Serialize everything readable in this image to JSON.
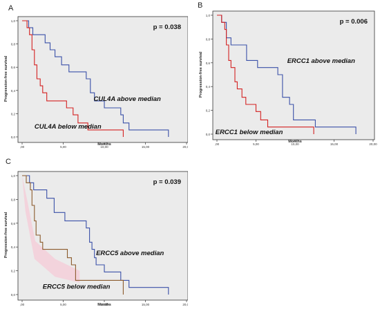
{
  "panels": [
    {
      "letter": "A",
      "chart_data": {
        "type": "line",
        "ylabel": "Progression-free survival",
        "xlabel": "Months",
        "xlim": [
          0,
          20
        ],
        "ylim": [
          0,
          1
        ],
        "xticks": [
          0,
          5,
          10,
          15,
          20
        ],
        "xtick_labels": [
          ",00",
          "5,00",
          "10,00",
          "15,00",
          "20,00"
        ],
        "yticks": [
          0,
          0.2,
          0.4,
          0.6,
          0.8,
          1.0
        ],
        "ytick_labels": [
          "0,0",
          "0,2",
          "0,4",
          "0,6",
          "0,8",
          "1,0"
        ],
        "pvalue": "p = 0.038",
        "background": "#ebebeb",
        "series": [
          {
            "name": "CUL4A above median",
            "color": "#3a50a8",
            "x": [
              0,
              0.8,
              0.8,
              1.3,
              1.3,
              2.8,
              2.8,
              3.4,
              3.4,
              4.0,
              4.0,
              4.8,
              4.8,
              5.7,
              5.7,
              7.8,
              7.8,
              8.3,
              8.3,
              8.8,
              8.8,
              10.0,
              10.0,
              12.0,
              12.0,
              12.3,
              12.3,
              13.0,
              13.0,
              17.8,
              17.8
            ],
            "y": [
              1.0,
              1.0,
              0.94,
              0.94,
              0.88,
              0.88,
              0.81,
              0.81,
              0.75,
              0.75,
              0.69,
              0.69,
              0.62,
              0.62,
              0.56,
              0.56,
              0.5,
              0.5,
              0.38,
              0.38,
              0.31,
              0.31,
              0.25,
              0.25,
              0.19,
              0.19,
              0.12,
              0.12,
              0.06,
              0.06,
              0.0
            ]
          },
          {
            "name": "CUL4A below median",
            "color": "#d42020",
            "x": [
              0,
              0.6,
              0.6,
              0.9,
              0.9,
              1.2,
              1.2,
              1.5,
              1.5,
              1.8,
              1.8,
              2.2,
              2.2,
              2.5,
              2.5,
              3.0,
              3.0,
              5.4,
              5.4,
              6.2,
              6.2,
              6.8,
              6.8,
              8.0,
              8.0,
              12.3,
              12.3
            ],
            "y": [
              1.0,
              1.0,
              0.94,
              0.94,
              0.88,
              0.88,
              0.75,
              0.75,
              0.62,
              0.62,
              0.5,
              0.5,
              0.44,
              0.44,
              0.38,
              0.38,
              0.31,
              0.31,
              0.25,
              0.25,
              0.19,
              0.19,
              0.12,
              0.12,
              0.06,
              0.06,
              0.0
            ]
          }
        ],
        "annotations": [
          {
            "text": "CUL4A above median",
            "x": 8.7,
            "y": 0.31
          },
          {
            "text": "CUL4A below median",
            "x": 1.5,
            "y": 0.07
          }
        ]
      }
    },
    {
      "letter": "B",
      "chart_data": {
        "type": "line",
        "ylabel": "Progression-free survival",
        "xlabel": "Months",
        "xlim": [
          0,
          20
        ],
        "ylim": [
          0,
          1
        ],
        "xticks": [
          0,
          5,
          10,
          15,
          20
        ],
        "xtick_labels": [
          ",00",
          "5,00",
          "10,00",
          "15,00",
          "20,00"
        ],
        "yticks": [
          0,
          0.2,
          0.4,
          0.6,
          0.8,
          1.0
        ],
        "ytick_labels": [
          "0,0",
          "0,2",
          "0,4",
          "0,6",
          "0,8",
          "1,0"
        ],
        "pvalue": "p = 0.006",
        "background": "#ebebeb",
        "series": [
          {
            "name": "ERCC1 above median",
            "color": "#3a50a8",
            "x": [
              0,
              0.6,
              0.6,
              1.2,
              1.2,
              1.8,
              1.8,
              3.8,
              3.8,
              5.2,
              5.2,
              7.8,
              7.8,
              8.4,
              8.4,
              9.3,
              9.3,
              9.8,
              9.8,
              12.6,
              12.6,
              13.2,
              13.2,
              17.8,
              17.8
            ],
            "y": [
              1.0,
              1.0,
              0.94,
              0.94,
              0.81,
              0.81,
              0.75,
              0.75,
              0.62,
              0.62,
              0.56,
              0.56,
              0.5,
              0.5,
              0.31,
              0.31,
              0.25,
              0.25,
              0.12,
              0.12,
              0.06,
              0.06,
              0.06,
              0.06,
              0.0
            ]
          },
          {
            "name": "ERCC1 below median",
            "color": "#d42020",
            "x": [
              0,
              0.6,
              0.6,
              1.0,
              1.0,
              1.2,
              1.2,
              1.5,
              1.5,
              1.8,
              1.8,
              2.3,
              2.3,
              2.6,
              2.6,
              3.2,
              3.2,
              3.7,
              3.7,
              5.0,
              5.0,
              5.6,
              5.6,
              6.5,
              6.5,
              7.0,
              7.0,
              12.4,
              12.4
            ],
            "y": [
              1.0,
              1.0,
              0.94,
              0.94,
              0.88,
              0.88,
              0.75,
              0.75,
              0.62,
              0.62,
              0.56,
              0.56,
              0.44,
              0.44,
              0.38,
              0.38,
              0.31,
              0.31,
              0.25,
              0.25,
              0.19,
              0.19,
              0.12,
              0.12,
              0.06,
              0.06,
              0.06,
              0.06,
              0.0
            ]
          }
        ],
        "annotations": [
          {
            "text": "ERCC1 above median",
            "x": 9.0,
            "y": 0.6
          },
          {
            "text": "ERCC1 below median",
            "x": -0.2,
            "y": 0.0
          }
        ]
      }
    },
    {
      "letter": "C",
      "chart_data": {
        "type": "line",
        "ylabel": "Progression-free survival",
        "xlabel": "Months",
        "xlim": [
          0,
          20
        ],
        "ylim": [
          0,
          1
        ],
        "xticks": [
          0,
          5,
          10,
          15,
          20
        ],
        "xtick_labels": [
          ",00",
          "5,00",
          "10,00",
          "15,00",
          "20,00"
        ],
        "yticks": [
          0,
          0.2,
          0.4,
          0.6,
          0.8,
          1.0
        ],
        "ytick_labels": [
          "0,0",
          "0,2",
          "0,4",
          "0,6",
          "0,8",
          "1,0"
        ],
        "pvalue": "p = 0.039",
        "background": "#ebebeb",
        "series": [
          {
            "name": "ERCC5 above median",
            "color": "#3a50a8",
            "x": [
              0,
              0.9,
              0.9,
              1.4,
              1.4,
              3.0,
              3.0,
              3.9,
              3.9,
              5.2,
              5.2,
              7.8,
              7.8,
              8.2,
              8.2,
              8.5,
              8.5,
              8.8,
              8.8,
              9.0,
              9.0,
              10.0,
              10.0,
              12.0,
              12.0,
              13.0,
              13.0,
              17.8,
              17.8
            ],
            "y": [
              1.0,
              1.0,
              0.94,
              0.94,
              0.88,
              0.88,
              0.81,
              0.81,
              0.69,
              0.69,
              0.62,
              0.62,
              0.56,
              0.56,
              0.44,
              0.44,
              0.38,
              0.38,
              0.31,
              0.31,
              0.25,
              0.25,
              0.19,
              0.19,
              0.12,
              0.12,
              0.06,
              0.06,
              0.0
            ]
          },
          {
            "name": "ERCC5 below median",
            "color": "#8b5a2b",
            "x": [
              0,
              0.5,
              0.5,
              1.0,
              1.0,
              1.2,
              1.2,
              1.5,
              1.5,
              1.7,
              1.7,
              2.2,
              2.2,
              2.5,
              2.5,
              5.5,
              5.5,
              6.0,
              6.0,
              6.5,
              6.5,
              12.3,
              12.3
            ],
            "y": [
              1.0,
              1.0,
              0.94,
              0.94,
              0.88,
              0.88,
              0.75,
              0.75,
              0.62,
              0.62,
              0.5,
              0.5,
              0.44,
              0.44,
              0.38,
              0.38,
              0.31,
              0.31,
              0.25,
              0.25,
              0.12,
              0.12,
              0.0
            ]
          }
        ],
        "annotations": [
          {
            "text": "ERCC5 above median",
            "x": 9.0,
            "y": 0.33
          },
          {
            "text": "ERCC5 below median",
            "x": 2.5,
            "y": 0.05
          }
        ],
        "shading": true
      }
    }
  ]
}
